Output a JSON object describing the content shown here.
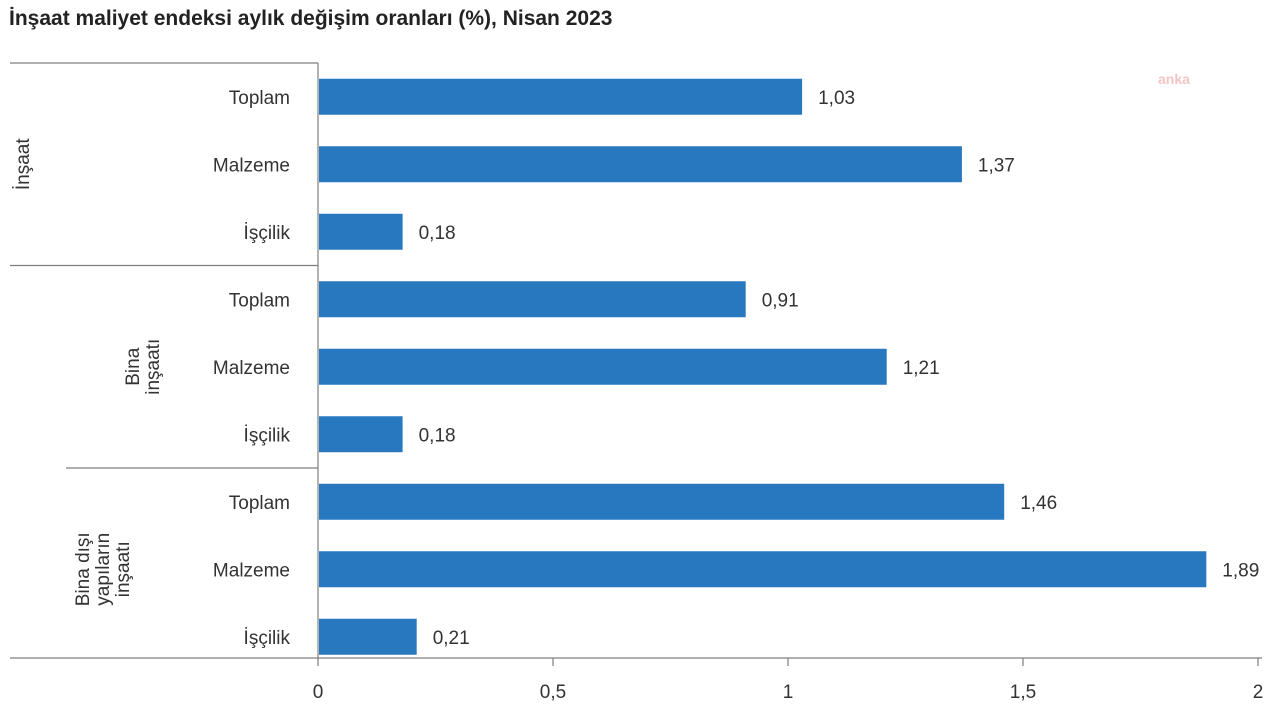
{
  "chart_data": {
    "type": "bar",
    "orientation": "horizontal",
    "title": "İnşaat maliyet endeksi aylık değişim oranları (%), Nisan 2023",
    "groups": [
      {
        "label_lines": [
          "İnşaat"
        ],
        "items": [
          {
            "label": "Toplam",
            "value": 1.03,
            "value_label": "1,03"
          },
          {
            "label": "Malzeme",
            "value": 1.37,
            "value_label": "1,37"
          },
          {
            "label": "İşçilik",
            "value": 0.18,
            "value_label": "0,18"
          }
        ]
      },
      {
        "label_lines": [
          "Bina",
          "inşaatı"
        ],
        "items": [
          {
            "label": "Toplam",
            "value": 0.91,
            "value_label": "0,91"
          },
          {
            "label": "Malzeme",
            "value": 1.21,
            "value_label": "1,21"
          },
          {
            "label": "İşçilik",
            "value": 0.18,
            "value_label": "0,18"
          }
        ]
      },
      {
        "label_lines": [
          "Bina dışı",
          "yapıların",
          "inşaatı"
        ],
        "items": [
          {
            "label": "Toplam",
            "value": 1.46,
            "value_label": "1,46"
          },
          {
            "label": "Malzeme",
            "value": 1.89,
            "value_label": "1,89"
          },
          {
            "label": "İşçilik",
            "value": 0.21,
            "value_label": "0,21"
          }
        ]
      }
    ],
    "xlim": [
      0,
      2
    ],
    "x_ticks": [
      0,
      0.5,
      1,
      1.5,
      2
    ],
    "x_tick_labels": [
      "0",
      "0,5",
      "1",
      "1,5",
      "2"
    ],
    "grid": false,
    "bar_color": "#2878c0",
    "watermark": "anka"
  }
}
